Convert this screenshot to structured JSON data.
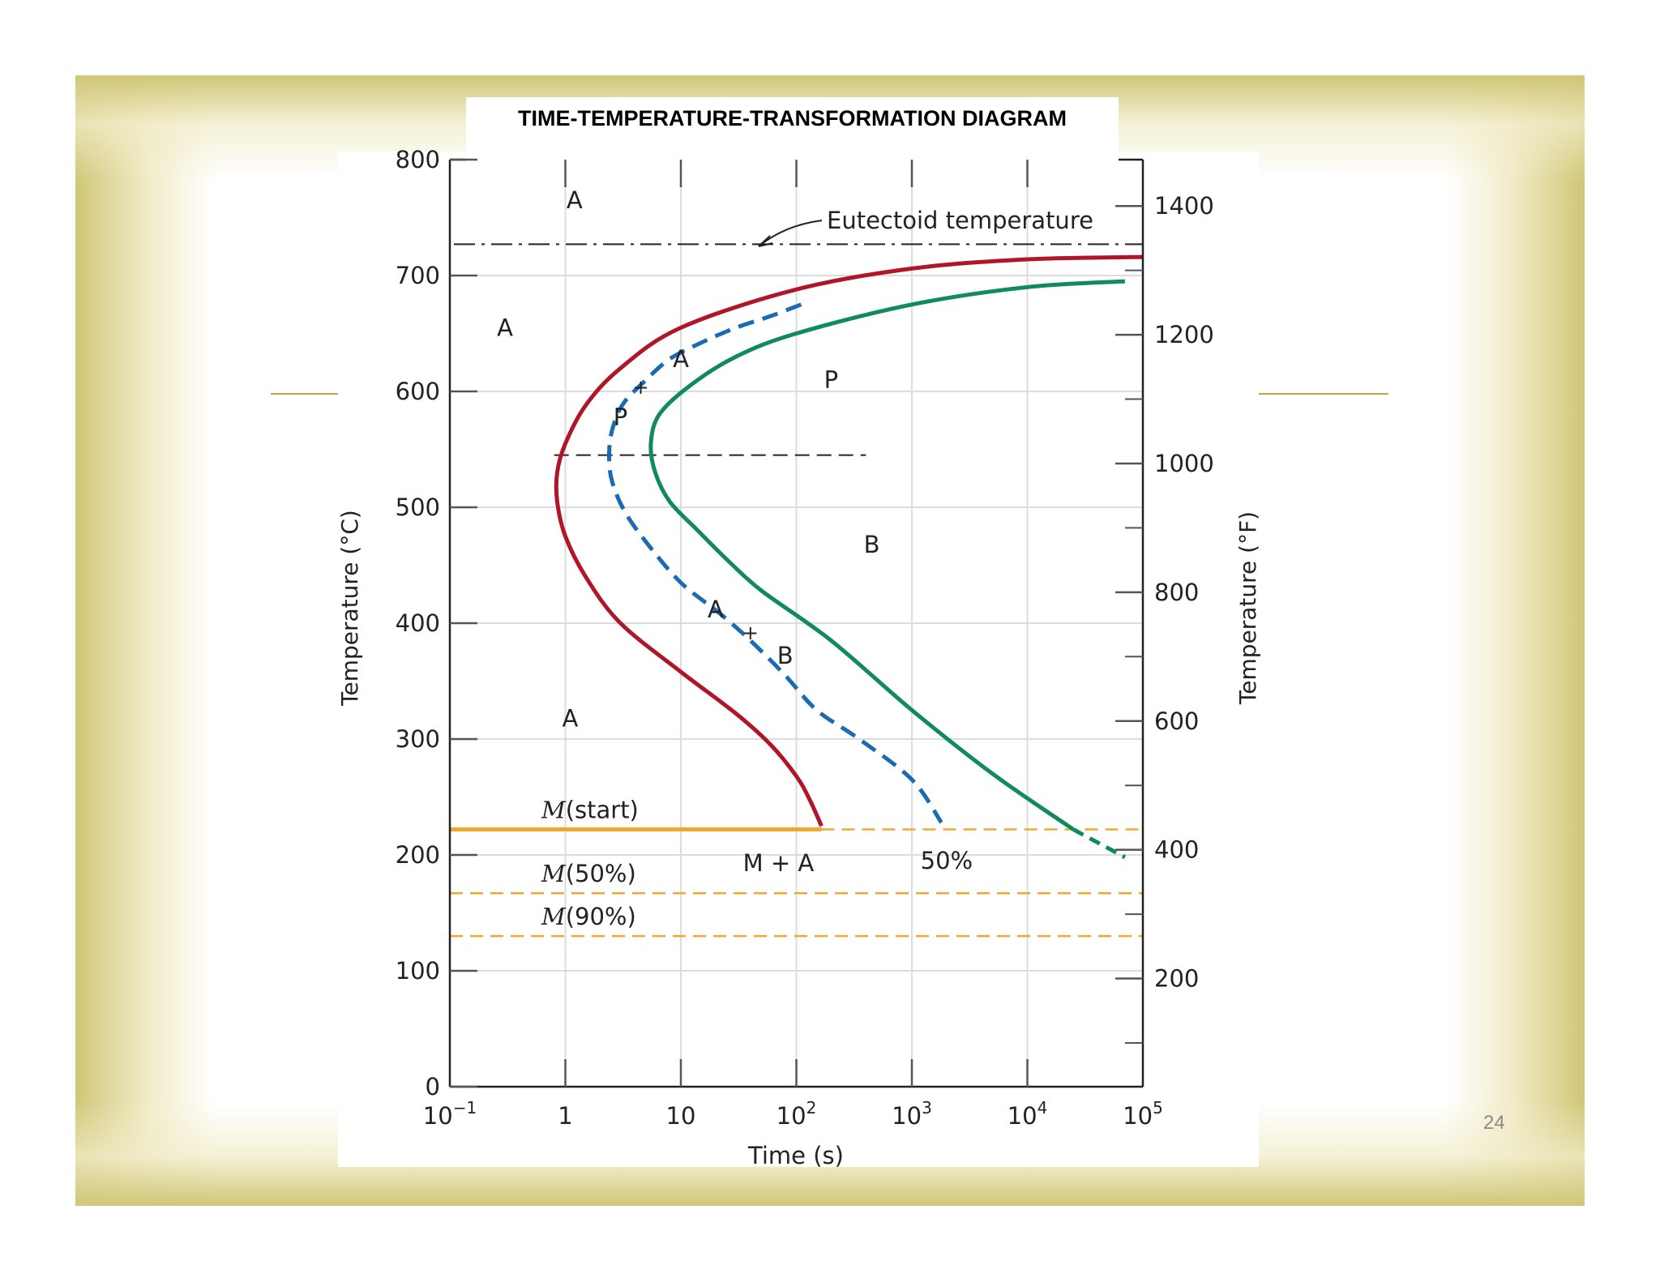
{
  "slide_number": "24",
  "colors": {
    "frame_gold": "#d0c677",
    "accent_rule": "#c9a043",
    "curve_start": "#b0162a",
    "curve_50": "#1a6bb3",
    "curve_end": "#118a62",
    "martensite": "#f0a830"
  },
  "chart_data": {
    "type": "line",
    "title": "TIME-TEMPERATURE-TRANSFORMATION DIAGRAM",
    "xlabel": "Time (s)",
    "ylabel": "Temperature (°C)",
    "ylabel_right": "Temperature (°F)",
    "x_scale": "log",
    "xlim": [
      0.1,
      100000
    ],
    "ylim": [
      0,
      800
    ],
    "y2lim_F": [
      32,
      1472
    ],
    "grid": true,
    "x_ticks": [
      {
        "value": 0.1,
        "base": "10",
        "exp": "−1"
      },
      {
        "value": 1,
        "base": "1",
        "exp": ""
      },
      {
        "value": 10,
        "base": "10",
        "exp": ""
      },
      {
        "value": 100,
        "base": "10",
        "exp": "2"
      },
      {
        "value": 1000,
        "base": "10",
        "exp": "3"
      },
      {
        "value": 10000,
        "base": "10",
        "exp": "4"
      },
      {
        "value": 100000,
        "base": "10",
        "exp": "5"
      }
    ],
    "y_ticks": [
      0,
      100,
      200,
      300,
      400,
      500,
      600,
      700,
      800
    ],
    "y2_ticks": [
      200,
      400,
      600,
      800,
      1000,
      1200,
      1400
    ],
    "eutectoid": {
      "y": 727,
      "label": "Eutectoid temperature"
    },
    "series": [
      {
        "id": "start",
        "points": [
          [
            100000,
            716
          ],
          [
            10000,
            714
          ],
          [
            1000,
            706
          ],
          [
            100,
            688
          ],
          [
            10,
            655
          ],
          [
            3,
            620
          ],
          [
            1.5,
            588
          ],
          [
            1,
            555
          ],
          [
            0.85,
            530
          ],
          [
            0.85,
            505
          ],
          [
            1,
            475
          ],
          [
            1.5,
            440
          ],
          [
            3,
            400
          ],
          [
            10,
            358
          ],
          [
            30,
            322
          ],
          [
            60,
            295
          ],
          [
            100,
            268
          ],
          [
            130,
            248
          ],
          [
            165,
            225
          ]
        ]
      },
      {
        "id": "half",
        "points": [
          [
            110,
            675
          ],
          [
            60,
            665
          ],
          [
            30,
            655
          ],
          [
            15,
            642
          ],
          [
            8,
            628
          ],
          [
            5,
            610
          ],
          [
            3.2,
            590
          ],
          [
            2.6,
            570
          ],
          [
            2.4,
            550
          ],
          [
            2.5,
            525
          ],
          [
            3.2,
            498
          ],
          [
            5,
            470
          ],
          [
            10,
            435
          ],
          [
            22,
            408
          ],
          [
            40,
            385
          ],
          [
            80,
            355
          ],
          [
            150,
            325
          ],
          [
            350,
            300
          ],
          [
            1000,
            265
          ],
          [
            1800,
            228
          ]
        ]
      },
      {
        "id": "end",
        "points": [
          [
            70000,
            695
          ],
          [
            10000,
            690
          ],
          [
            1000,
            675
          ],
          [
            100,
            650
          ],
          [
            30,
            630
          ],
          [
            12,
            605
          ],
          [
            6.5,
            580
          ],
          [
            5.5,
            555
          ],
          [
            6,
            530
          ],
          [
            8,
            505
          ],
          [
            14,
            480
          ],
          [
            25,
            455
          ],
          [
            50,
            428
          ],
          [
            200,
            385
          ],
          [
            1000,
            325
          ],
          [
            5000,
            270
          ],
          [
            25000,
            222
          ],
          [
            70000,
            198
          ]
        ]
      }
    ],
    "martensite_lines": [
      {
        "label_m": "M",
        "label_rest": "(start)",
        "y": 222,
        "solid_until": 165
      },
      {
        "label_m": "M",
        "label_rest": "(50%)",
        "y": 167
      },
      {
        "label_m": "M",
        "label_rest": "(90%)",
        "y": 130
      }
    ],
    "isothermal_line": {
      "y": 545,
      "x_start": 0.8,
      "x_end": 400
    },
    "annotations": [
      {
        "text": "A",
        "x": 1.2,
        "y": 765
      },
      {
        "text": "A",
        "x": 0.3,
        "y": 655
      },
      {
        "text": "A",
        "x": 1.1,
        "y": 318
      },
      {
        "text": "P",
        "x": 200,
        "y": 610
      },
      {
        "text": "B",
        "x": 450,
        "y": 468
      },
      {
        "text": "A",
        "x": 10,
        "y": 628
      },
      {
        "text": "+",
        "x": 4.5,
        "y": 605
      },
      {
        "text": "P",
        "x": 3,
        "y": 578
      },
      {
        "text": "A",
        "x": 20,
        "y": 412
      },
      {
        "text": "+",
        "x": 40,
        "y": 393
      },
      {
        "text": "B",
        "x": 80,
        "y": 372
      },
      {
        "text": "50%",
        "x": 2000,
        "y": 195
      },
      {
        "text": "M + A",
        "x": 70,
        "y": 193
      }
    ]
  }
}
